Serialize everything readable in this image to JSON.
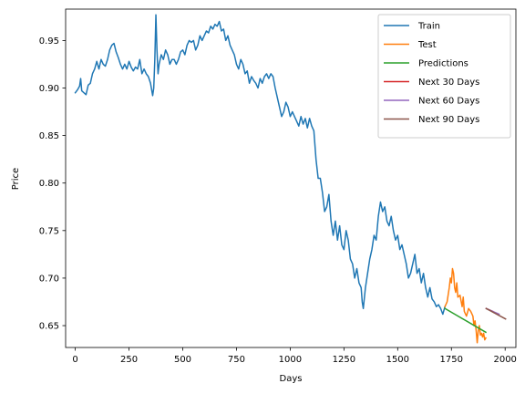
{
  "chart_data": {
    "type": "line",
    "title": "",
    "xlabel": "Days",
    "ylabel": "Price",
    "xlim": [
      -45,
      2050
    ],
    "ylim": [
      0.627,
      0.983
    ],
    "xticks": [
      0,
      250,
      500,
      750,
      1000,
      1250,
      1500,
      1750,
      2000
    ],
    "yticks": [
      0.65,
      0.7,
      0.75,
      0.8,
      0.85,
      0.9,
      0.95
    ],
    "xtick_labels": [
      "0",
      "250",
      "500",
      "750",
      "1000",
      "1250",
      "1500",
      "1750",
      "2000"
    ],
    "ytick_labels": [
      "0.65",
      "0.70",
      "0.75",
      "0.80",
      "0.85",
      "0.90",
      "0.95"
    ],
    "grid": false,
    "legend_position": "top-right",
    "series": [
      {
        "name": "Train",
        "color": "#1f77b4",
        "points": [
          [
            0,
            0.895
          ],
          [
            10,
            0.898
          ],
          [
            20,
            0.902
          ],
          [
            25,
            0.91
          ],
          [
            30,
            0.897
          ],
          [
            40,
            0.895
          ],
          [
            50,
            0.893
          ],
          [
            60,
            0.903
          ],
          [
            70,
            0.905
          ],
          [
            80,
            0.915
          ],
          [
            90,
            0.92
          ],
          [
            100,
            0.928
          ],
          [
            110,
            0.92
          ],
          [
            120,
            0.93
          ],
          [
            130,
            0.925
          ],
          [
            140,
            0.923
          ],
          [
            150,
            0.93
          ],
          [
            160,
            0.94
          ],
          [
            170,
            0.945
          ],
          [
            180,
            0.947
          ],
          [
            190,
            0.938
          ],
          [
            200,
            0.932
          ],
          [
            210,
            0.925
          ],
          [
            220,
            0.92
          ],
          [
            230,
            0.925
          ],
          [
            240,
            0.92
          ],
          [
            250,
            0.928
          ],
          [
            260,
            0.922
          ],
          [
            270,
            0.918
          ],
          [
            280,
            0.922
          ],
          [
            290,
            0.92
          ],
          [
            300,
            0.93
          ],
          [
            310,
            0.915
          ],
          [
            320,
            0.92
          ],
          [
            330,
            0.915
          ],
          [
            340,
            0.912
          ],
          [
            350,
            0.905
          ],
          [
            360,
            0.892
          ],
          [
            365,
            0.9
          ],
          [
            370,
            0.93
          ],
          [
            375,
            0.977
          ],
          [
            380,
            0.94
          ],
          [
            385,
            0.915
          ],
          [
            390,
            0.925
          ],
          [
            400,
            0.935
          ],
          [
            410,
            0.93
          ],
          [
            420,
            0.94
          ],
          [
            430,
            0.935
          ],
          [
            440,
            0.925
          ],
          [
            450,
            0.93
          ],
          [
            460,
            0.93
          ],
          [
            470,
            0.925
          ],
          [
            480,
            0.93
          ],
          [
            490,
            0.938
          ],
          [
            500,
            0.94
          ],
          [
            510,
            0.935
          ],
          [
            520,
            0.945
          ],
          [
            530,
            0.95
          ],
          [
            540,
            0.948
          ],
          [
            550,
            0.95
          ],
          [
            560,
            0.94
          ],
          [
            570,
            0.945
          ],
          [
            580,
            0.955
          ],
          [
            590,
            0.95
          ],
          [
            600,
            0.955
          ],
          [
            610,
            0.96
          ],
          [
            620,
            0.958
          ],
          [
            630,
            0.965
          ],
          [
            640,
            0.962
          ],
          [
            650,
            0.967
          ],
          [
            660,
            0.965
          ],
          [
            670,
            0.97
          ],
          [
            680,
            0.96
          ],
          [
            690,
            0.962
          ],
          [
            700,
            0.95
          ],
          [
            710,
            0.955
          ],
          [
            720,
            0.945
          ],
          [
            730,
            0.94
          ],
          [
            740,
            0.935
          ],
          [
            750,
            0.925
          ],
          [
            760,
            0.92
          ],
          [
            770,
            0.93
          ],
          [
            780,
            0.925
          ],
          [
            790,
            0.915
          ],
          [
            800,
            0.918
          ],
          [
            810,
            0.905
          ],
          [
            820,
            0.912
          ],
          [
            830,
            0.908
          ],
          [
            840,
            0.905
          ],
          [
            850,
            0.9
          ],
          [
            860,
            0.91
          ],
          [
            870,
            0.905
          ],
          [
            880,
            0.912
          ],
          [
            890,
            0.915
          ],
          [
            900,
            0.91
          ],
          [
            910,
            0.915
          ],
          [
            920,
            0.912
          ],
          [
            930,
            0.9
          ],
          [
            940,
            0.89
          ],
          [
            950,
            0.88
          ],
          [
            960,
            0.87
          ],
          [
            970,
            0.875
          ],
          [
            980,
            0.885
          ],
          [
            990,
            0.88
          ],
          [
            1000,
            0.87
          ],
          [
            1010,
            0.875
          ],
          [
            1020,
            0.87
          ],
          [
            1030,
            0.865
          ],
          [
            1040,
            0.86
          ],
          [
            1050,
            0.87
          ],
          [
            1060,
            0.862
          ],
          [
            1070,
            0.868
          ],
          [
            1080,
            0.858
          ],
          [
            1090,
            0.868
          ],
          [
            1100,
            0.86
          ],
          [
            1110,
            0.855
          ],
          [
            1120,
            0.825
          ],
          [
            1130,
            0.805
          ],
          [
            1140,
            0.805
          ],
          [
            1150,
            0.79
          ],
          [
            1160,
            0.77
          ],
          [
            1170,
            0.775
          ],
          [
            1180,
            0.788
          ],
          [
            1190,
            0.76
          ],
          [
            1200,
            0.745
          ],
          [
            1210,
            0.76
          ],
          [
            1220,
            0.74
          ],
          [
            1230,
            0.755
          ],
          [
            1240,
            0.735
          ],
          [
            1250,
            0.73
          ],
          [
            1260,
            0.75
          ],
          [
            1270,
            0.74
          ],
          [
            1280,
            0.72
          ],
          [
            1290,
            0.715
          ],
          [
            1300,
            0.7
          ],
          [
            1310,
            0.71
          ],
          [
            1320,
            0.695
          ],
          [
            1330,
            0.69
          ],
          [
            1335,
            0.675
          ],
          [
            1340,
            0.668
          ],
          [
            1350,
            0.69
          ],
          [
            1360,
            0.705
          ],
          [
            1370,
            0.72
          ],
          [
            1380,
            0.73
          ],
          [
            1390,
            0.745
          ],
          [
            1400,
            0.74
          ],
          [
            1410,
            0.765
          ],
          [
            1420,
            0.78
          ],
          [
            1430,
            0.77
          ],
          [
            1440,
            0.775
          ],
          [
            1450,
            0.76
          ],
          [
            1460,
            0.755
          ],
          [
            1470,
            0.765
          ],
          [
            1480,
            0.75
          ],
          [
            1490,
            0.74
          ],
          [
            1500,
            0.745
          ],
          [
            1510,
            0.73
          ],
          [
            1520,
            0.735
          ],
          [
            1530,
            0.725
          ],
          [
            1540,
            0.715
          ],
          [
            1550,
            0.7
          ],
          [
            1560,
            0.705
          ],
          [
            1570,
            0.715
          ],
          [
            1580,
            0.725
          ],
          [
            1590,
            0.705
          ],
          [
            1600,
            0.71
          ],
          [
            1610,
            0.695
          ],
          [
            1620,
            0.705
          ],
          [
            1630,
            0.69
          ],
          [
            1640,
            0.68
          ],
          [
            1650,
            0.69
          ],
          [
            1660,
            0.678
          ],
          [
            1670,
            0.675
          ],
          [
            1680,
            0.67
          ],
          [
            1690,
            0.672
          ],
          [
            1700,
            0.668
          ],
          [
            1710,
            0.662
          ],
          [
            1720,
            0.67
          ]
        ]
      },
      {
        "name": "Test",
        "color": "#ff7f0e",
        "points": [
          [
            1720,
            0.67
          ],
          [
            1730,
            0.675
          ],
          [
            1740,
            0.69
          ],
          [
            1745,
            0.7
          ],
          [
            1750,
            0.695
          ],
          [
            1755,
            0.71
          ],
          [
            1760,
            0.705
          ],
          [
            1765,
            0.69
          ],
          [
            1770,
            0.685
          ],
          [
            1775,
            0.695
          ],
          [
            1780,
            0.68
          ],
          [
            1790,
            0.682
          ],
          [
            1800,
            0.67
          ],
          [
            1805,
            0.68
          ],
          [
            1810,
            0.665
          ],
          [
            1820,
            0.66
          ],
          [
            1830,
            0.668
          ],
          [
            1840,
            0.665
          ],
          [
            1850,
            0.66
          ],
          [
            1855,
            0.65
          ],
          [
            1860,
            0.655
          ],
          [
            1865,
            0.645
          ],
          [
            1870,
            0.632
          ],
          [
            1875,
            0.645
          ],
          [
            1880,
            0.65
          ],
          [
            1885,
            0.64
          ],
          [
            1890,
            0.642
          ],
          [
            1895,
            0.638
          ],
          [
            1900,
            0.642
          ],
          [
            1905,
            0.635
          ],
          [
            1910,
            0.637
          ]
        ]
      },
      {
        "name": "Predictions",
        "color": "#2ca02c",
        "points": [
          [
            1720,
            0.668
          ],
          [
            1910,
            0.643
          ]
        ]
      },
      {
        "name": "Next 30 Days",
        "color": "#d62728",
        "points": [
          [
            1912,
            0.668
          ],
          [
            1942,
            0.665
          ]
        ]
      },
      {
        "name": "Next 60 Days",
        "color": "#9467bd",
        "points": [
          [
            1912,
            0.668
          ],
          [
            1972,
            0.662
          ]
        ]
      },
      {
        "name": "Next 90 Days",
        "color": "#8c564b",
        "points": [
          [
            1912,
            0.668
          ],
          [
            2002,
            0.657
          ]
        ]
      }
    ]
  }
}
